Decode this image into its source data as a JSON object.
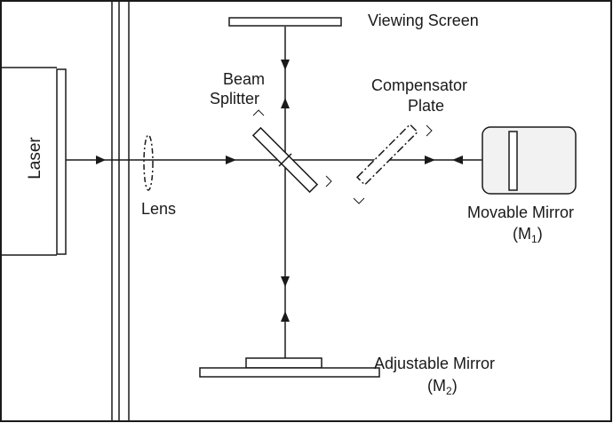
{
  "labels": {
    "laser": "Laser",
    "lens": "Lens",
    "beam_splitter_line1": "Beam",
    "beam_splitter_line2": "Splitter",
    "compensator_line1": "Compensator",
    "compensator_line2": "Plate",
    "viewing_screen": "Viewing Screen",
    "movable_mirror": "Movable Mirror",
    "m1_open": "(M",
    "m1_sub": "1",
    "m1_close": ")",
    "adjustable_mirror": "Adjustable Mirror",
    "m2_open": "(M",
    "m2_sub": "2",
    "m2_close": ")"
  },
  "colors": {
    "line": "#1a1a1a",
    "background": "#ffffff",
    "mirror_box": "#f2f2f2"
  }
}
